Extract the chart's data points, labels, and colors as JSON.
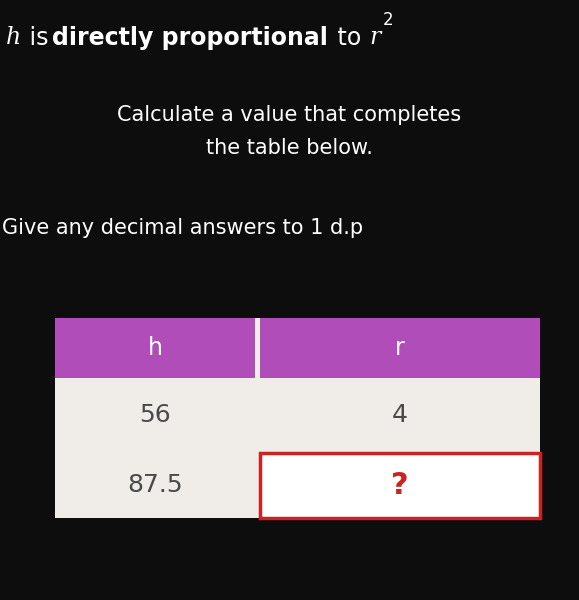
{
  "bg_color": "#0d0d0d",
  "text_color": "#ffffff",
  "table_area_color": "#f0ede8",
  "header_color": "#b04db8",
  "header_text_color": "#ffffff",
  "col1_header": "h",
  "col2_header": "r",
  "row1_col1": "56",
  "row1_col2": "4",
  "row2_col1": "87.5",
  "row2_col2": "?",
  "cell_text_color": "#4a4a4a",
  "question_mark_color": "#cc2222",
  "red_border_color": "#cc2222",
  "subtitle1": "Calculate a value that completes",
  "subtitle2": "the table below.",
  "subtitle3": "Give any decimal answers to 1 d.p",
  "fig_width": 5.79,
  "fig_height": 6.0,
  "dpi": 100
}
